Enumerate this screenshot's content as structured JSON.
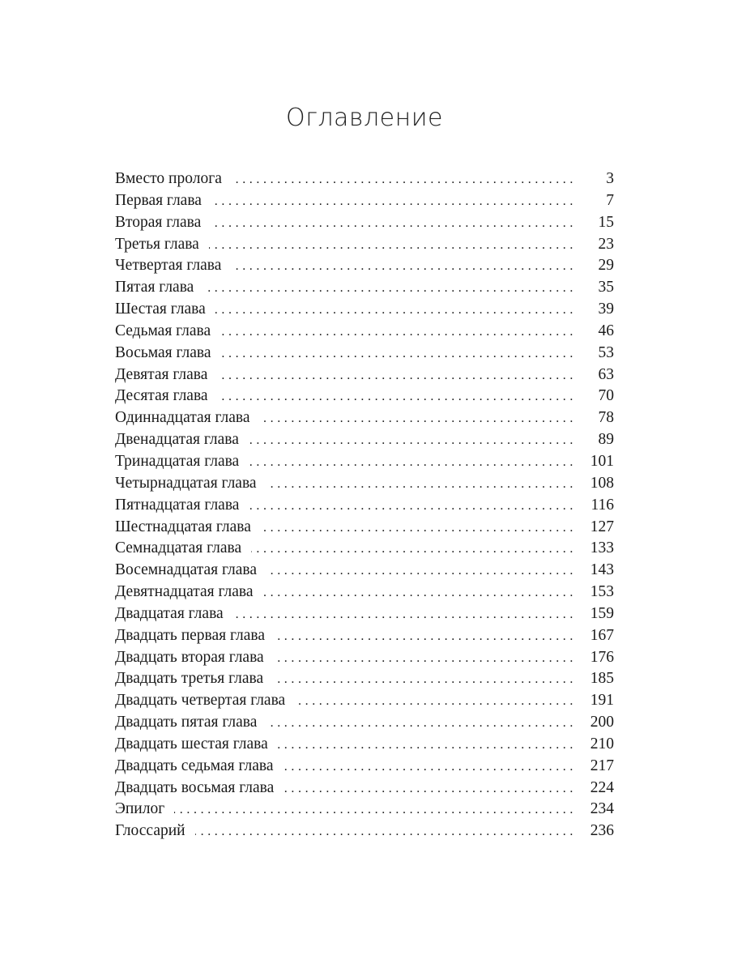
{
  "title": "Оглавление",
  "entries": [
    {
      "label": "Вместо пролога",
      "page": "3"
    },
    {
      "label": "Первая глава",
      "page": "7"
    },
    {
      "label": "Вторая глава",
      "page": "15"
    },
    {
      "label": "Третья глава",
      "page": "23"
    },
    {
      "label": "Четвертая глава",
      "page": "29"
    },
    {
      "label": "Пятая глава",
      "page": "35"
    },
    {
      "label": "Шестая глава",
      "page": "39"
    },
    {
      "label": "Седьмая глава",
      "page": "46"
    },
    {
      "label": "Восьмая глава",
      "page": "53"
    },
    {
      "label": "Девятая глава",
      "page": "63"
    },
    {
      "label": "Десятая глава",
      "page": "70"
    },
    {
      "label": "Одиннадцатая глава",
      "page": "78"
    },
    {
      "label": "Двенадцатая глава",
      "page": "89"
    },
    {
      "label": "Тринадцатая глава",
      "page": "101"
    },
    {
      "label": "Четырнадцатая глава",
      "page": "108"
    },
    {
      "label": "Пятнадцатая глава",
      "page": "116"
    },
    {
      "label": "Шестнадцатая глава",
      "page": "127"
    },
    {
      "label": "Семнадцатая глава",
      "page": "133"
    },
    {
      "label": "Восемнадцатая глава",
      "page": "143"
    },
    {
      "label": "Девятнадцатая глава",
      "page": "153"
    },
    {
      "label": "Двадцатая глава",
      "page": "159"
    },
    {
      "label": "Двадцать первая глава",
      "page": "167"
    },
    {
      "label": "Двадцать вторая глава",
      "page": "176"
    },
    {
      "label": "Двадцать третья глава",
      "page": "185"
    },
    {
      "label": "Двадцать четвертая глава",
      "page": "191"
    },
    {
      "label": "Двадцать пятая глава",
      "page": "200"
    },
    {
      "label": "Двадцать шестая глава",
      "page": "210"
    },
    {
      "label": "Двадцать седьмая глава",
      "page": "217"
    },
    {
      "label": "Двадцать восьмая глава",
      "page": "224"
    },
    {
      "label": "Эпилог",
      "page": "234"
    },
    {
      "label": "Глоссарий",
      "page": "236"
    }
  ]
}
